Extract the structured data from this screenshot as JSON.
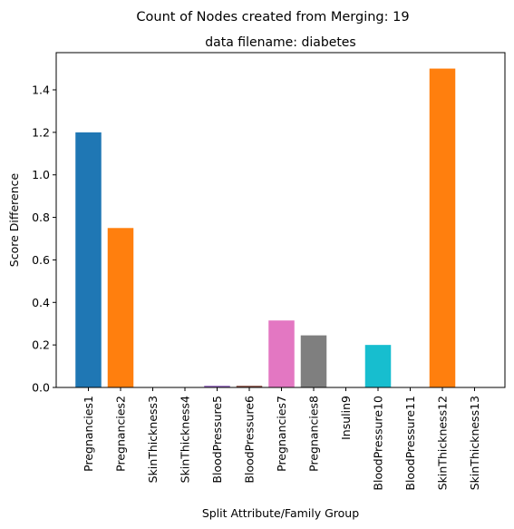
{
  "chart_data": {
    "type": "bar",
    "suptitle": "Count of Nodes created from Merging: 19",
    "title": "data filename: diabetes",
    "xlabel": "Split Attribute/Family Group",
    "ylabel": "Score Difference",
    "ylim": [
      0,
      1.575
    ],
    "yticks": [
      0.0,
      0.2,
      0.4,
      0.6,
      0.8,
      1.0,
      1.2,
      1.4
    ],
    "grid": false,
    "categories": [
      "Pregnancies1",
      "Pregnancies2",
      "SkinThickness3",
      "SkinThickness4",
      "BloodPressure5",
      "BloodPressure6",
      "Pregnancies7",
      "Pregnancies8",
      "Insulin9",
      "BloodPressure10",
      "BloodPressure11",
      "SkinThickness12",
      "SkinThickness13"
    ],
    "values": [
      1.2,
      0.75,
      0.0,
      0.0,
      0.008,
      0.008,
      0.315,
      0.245,
      0.0,
      0.2,
      0.0,
      1.5,
      0.0
    ],
    "colors": [
      "#1f77b4",
      "#ff7f0e",
      "#2ca02c",
      "#d62728",
      "#9467bd",
      "#8c564b",
      "#e377c2",
      "#7f7f7f",
      "#bcbd22",
      "#17becf",
      "#1f77b4",
      "#ff7f0e",
      "#2ca02c"
    ]
  }
}
